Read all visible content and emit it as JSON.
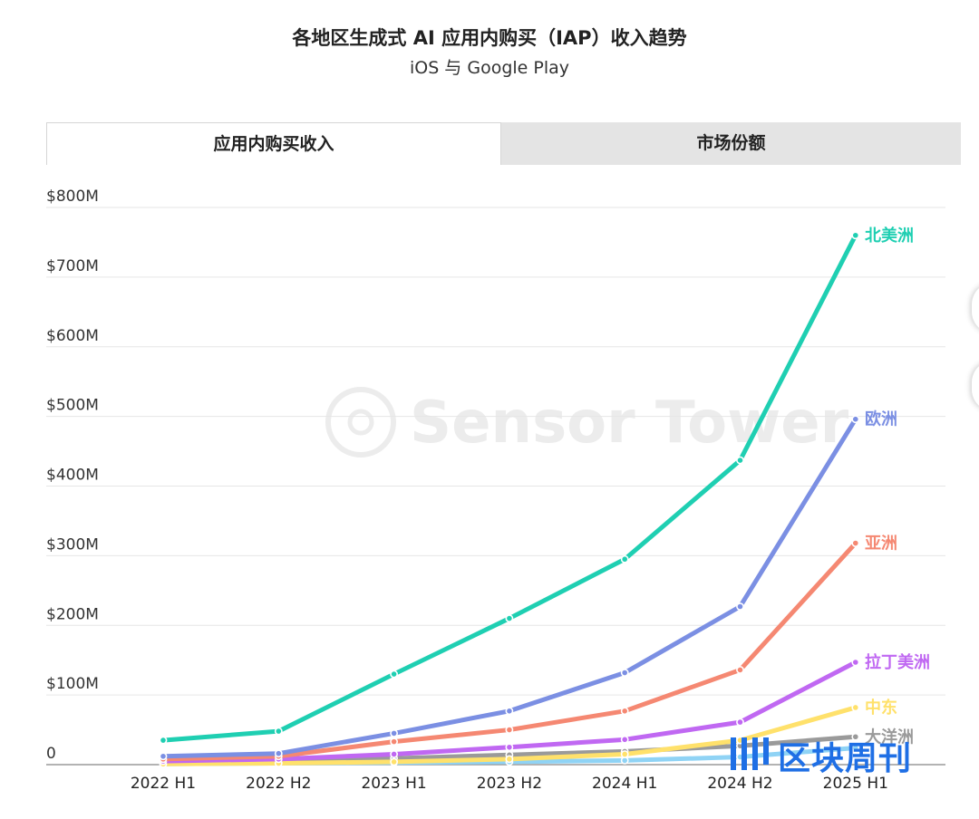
{
  "title": "各地区生成式 AI 应用内购买（IAP）收入趋势",
  "subtitle": "iOS 与 Google Play",
  "tabs": [
    {
      "label": "应用内购买收入",
      "active": true
    },
    {
      "label": "市场份额",
      "active": false
    }
  ],
  "watermark": "Sensor Tower",
  "brand_logo": "区块周刊",
  "colors": {
    "north_america": "#1fcfb2",
    "europe": "#7b8fe3",
    "asia": "#f58872",
    "latin_america": "#c068f2",
    "middle_east": "#ffe16b",
    "oceania": "#9a9a9a",
    "africa": "#8fd3f5",
    "brand": "#1f6fe5"
  },
  "chart_data": {
    "type": "line",
    "title": "各地区生成式 AI 应用内购买（IAP）收入趋势",
    "subtitle": "iOS 与 Google Play",
    "x": [
      "2022 H1",
      "2022 H2",
      "2023 H1",
      "2023 H2",
      "2024 H1",
      "2024 H2",
      "2025 H1"
    ],
    "ylim": [
      0,
      800
    ],
    "y_ticks": [
      {
        "value": 0,
        "label": "0"
      },
      {
        "value": 100,
        "label": "$100M"
      },
      {
        "value": 200,
        "label": "$200M"
      },
      {
        "value": 300,
        "label": "$300M"
      },
      {
        "value": 400,
        "label": "$400M"
      },
      {
        "value": 500,
        "label": "$500M"
      },
      {
        "value": 600,
        "label": "$600M"
      },
      {
        "value": 700,
        "label": "$700M"
      },
      {
        "value": 800,
        "label": "$800M"
      }
    ],
    "grid": true,
    "legend": "line-end labels",
    "series": [
      {
        "name": "北美洲",
        "color": "#1fcfb2",
        "values": [
          35,
          48,
          130,
          210,
          295,
          437,
          760
        ]
      },
      {
        "name": "欧洲",
        "color": "#7b8fe3",
        "values": [
          12,
          16,
          45,
          77,
          132,
          227,
          496
        ]
      },
      {
        "name": "亚洲",
        "color": "#f58872",
        "values": [
          8,
          12,
          33,
          50,
          77,
          136,
          318
        ]
      },
      {
        "name": "拉丁美洲",
        "color": "#c068f2",
        "values": [
          5,
          8,
          15,
          25,
          36,
          61,
          147
        ]
      },
      {
        "name": "中东",
        "color": "#ffe16b",
        "values": [
          1,
          2,
          4,
          8,
          15,
          35,
          82
        ]
      },
      {
        "name": "大洋洲",
        "color": "#9a9a9a",
        "values": [
          3,
          5,
          9,
          14,
          19,
          27,
          40
        ]
      },
      {
        "name": "",
        "color": "#8fd3f5",
        "values": [
          1,
          2,
          3,
          4,
          6,
          11,
          24
        ]
      }
    ]
  }
}
